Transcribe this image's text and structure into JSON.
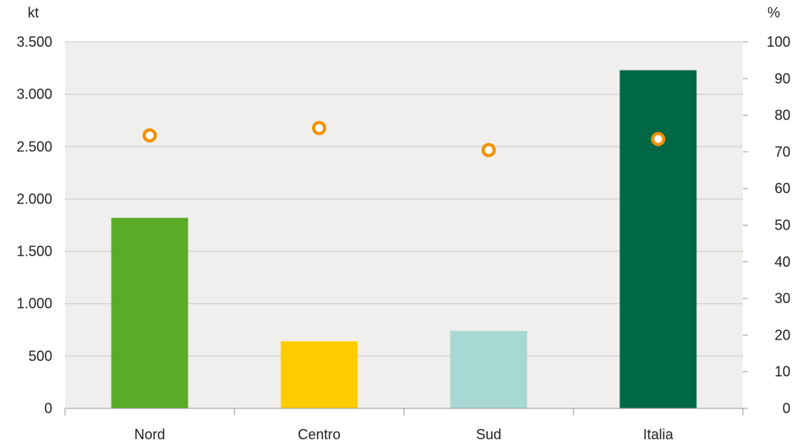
{
  "chart_data": {
    "type": "bar",
    "categories": [
      "Nord",
      "Centro",
      "Sud",
      "Italia"
    ],
    "series": [
      {
        "axis": "left",
        "kind": "bar",
        "values": [
          1820,
          640,
          740,
          3230
        ],
        "colors": [
          "#5aab27",
          "#ffcc00",
          "#a7d8d3",
          "#006747"
        ]
      },
      {
        "axis": "right",
        "kind": "scatter",
        "values": [
          74.5,
          76.5,
          70.5,
          73.5
        ],
        "color": "#f29100"
      }
    ],
    "y_left": {
      "unit": "kt",
      "ylim": [
        0,
        3500
      ],
      "ticks": [
        0,
        500,
        1000,
        1500,
        2000,
        2500,
        3000,
        3500
      ],
      "tick_labels": [
        "0",
        "500",
        "1.000",
        "1.500",
        "2.000",
        "2.500",
        "3.000",
        "3.500"
      ]
    },
    "y_right": {
      "unit": "%",
      "ylim": [
        0,
        100
      ],
      "ticks": [
        0,
        10,
        20,
        30,
        40,
        50,
        60,
        70,
        80,
        90,
        100
      ],
      "tick_labels": [
        "0",
        "10",
        "20",
        "30",
        "40",
        "50",
        "60",
        "70",
        "80",
        "90",
        "100"
      ]
    },
    "grid": true,
    "legend": "none",
    "plot_background": "#f0efed",
    "grid_color": "#c8c8c8"
  }
}
